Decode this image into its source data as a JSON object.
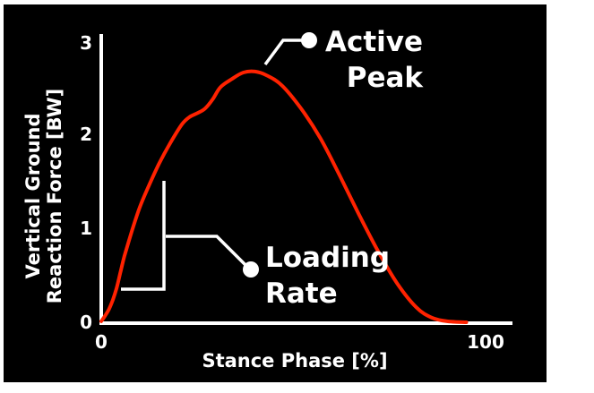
{
  "chart_data": {
    "type": "line",
    "title": "",
    "xlabel": "Stance Phase [%]",
    "ylabel_line1": "Vertical Ground",
    "ylabel_line2": "Reaction Force [BW]",
    "xlim": [
      0,
      100
    ],
    "ylim": [
      0,
      3
    ],
    "x_ticks": [
      "0",
      "100"
    ],
    "y_ticks": [
      "0",
      "1",
      "2",
      "3"
    ],
    "grid": false,
    "series": [
      {
        "color": "#ff2200",
        "points": [
          [
            0,
            0.02
          ],
          [
            1,
            0.08
          ],
          [
            2,
            0.15
          ],
          [
            3,
            0.25
          ],
          [
            4,
            0.38
          ],
          [
            5,
            0.55
          ],
          [
            6,
            0.72
          ],
          [
            8,
            1.0
          ],
          [
            10,
            1.25
          ],
          [
            12,
            1.45
          ],
          [
            15,
            1.72
          ],
          [
            18,
            1.95
          ],
          [
            21,
            2.15
          ],
          [
            23,
            2.23
          ],
          [
            25,
            2.27
          ],
          [
            27,
            2.32
          ],
          [
            29,
            2.42
          ],
          [
            31,
            2.55
          ],
          [
            34,
            2.64
          ],
          [
            37,
            2.71
          ],
          [
            40,
            2.72
          ],
          [
            43,
            2.68
          ],
          [
            47,
            2.57
          ],
          [
            52,
            2.32
          ],
          [
            57,
            2.0
          ],
          [
            62,
            1.6
          ],
          [
            67,
            1.18
          ],
          [
            72,
            0.78
          ],
          [
            77,
            0.43
          ],
          [
            82,
            0.17
          ],
          [
            86,
            0.06
          ],
          [
            90,
            0.02
          ],
          [
            95,
            0.01
          ]
        ]
      }
    ],
    "annotations": {
      "active_peak_line1": "Active",
      "active_peak_line2": "Peak",
      "loading_rate_line1": "Loading",
      "loading_rate_line2": "Rate"
    }
  },
  "colors": {
    "background": "#000000",
    "axes": "#ffffff",
    "curve": "#ff2200",
    "annotation": "#ffffff"
  }
}
